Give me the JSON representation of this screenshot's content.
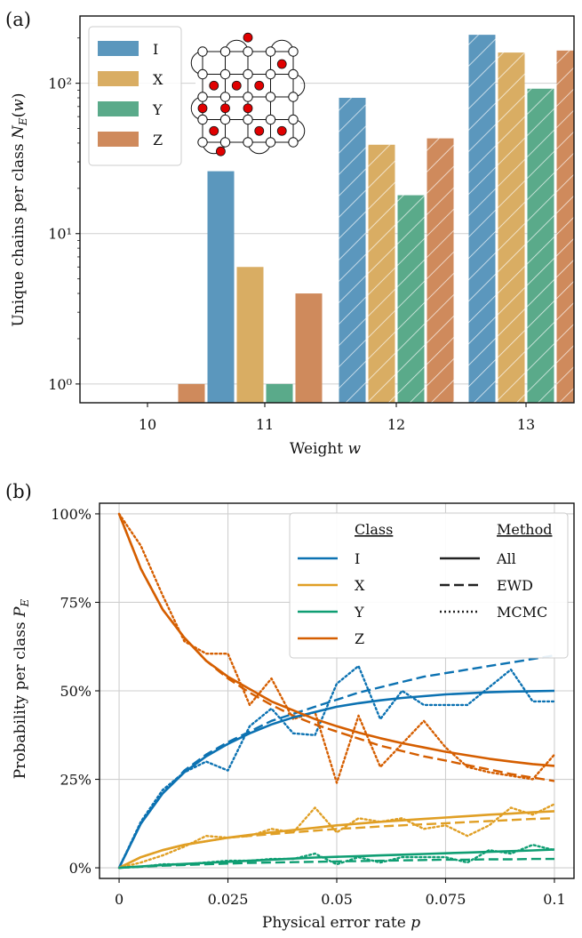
{
  "chart_data": [
    {
      "panel_label": "(a)",
      "type": "bar",
      "xlabel": "Weight w",
      "ylabel": "Unique chains per class N_E(w)",
      "yscale": "log",
      "ylim": [
        0.75,
        280
      ],
      "yticks": [
        {
          "value": 1,
          "label": "10⁰"
        },
        {
          "value": 10,
          "label": "10¹"
        },
        {
          "value": 100,
          "label": "10²"
        }
      ],
      "categories": [
        "10",
        "11",
        "12",
        "13"
      ],
      "hatched": [
        false,
        false,
        true,
        true
      ],
      "series": [
        {
          "name": "I",
          "color": "#5b97bd",
          "values": [
            null,
            26,
            80,
            210
          ]
        },
        {
          "name": "X",
          "color": "#d9ad63",
          "values": [
            null,
            6,
            39,
            160
          ]
        },
        {
          "name": "Y",
          "color": "#5aaa8a",
          "values": [
            null,
            1,
            18,
            92
          ]
        },
        {
          "name": "Z",
          "color": "#cf8a5c",
          "values": [
            1,
            4,
            43,
            165
          ]
        }
      ],
      "legend": "top-left",
      "grid": "horizontal",
      "inset": "surface code lattice with red error dots"
    },
    {
      "panel_label": "(b)",
      "type": "line",
      "xlabel": "Physical error rate p",
      "ylabel": "Probability per class P_E",
      "xlim": [
        -0.0045,
        0.1045
      ],
      "ylim": [
        -3,
        103
      ],
      "xticks": [
        {
          "value": 0,
          "label": "0"
        },
        {
          "value": 0.025,
          "label": "0.025"
        },
        {
          "value": 0.05,
          "label": "0.05"
        },
        {
          "value": 0.075,
          "label": "0.075"
        },
        {
          "value": 0.1,
          "label": "0.1"
        }
      ],
      "yticks": [
        {
          "value": 0,
          "label": "0%"
        },
        {
          "value": 25,
          "label": "25%"
        },
        {
          "value": 50,
          "label": "50%"
        },
        {
          "value": 75,
          "label": "75%"
        },
        {
          "value": 100,
          "label": "100%"
        }
      ],
      "grid": true,
      "legend": "top-right",
      "legend_class_title": "Class",
      "legend_method_title": "Method",
      "classes": [
        {
          "name": "I",
          "color": "#0c72b2"
        },
        {
          "name": "X",
          "color": "#e09f25"
        },
        {
          "name": "Y",
          "color": "#0f9e73"
        },
        {
          "name": "Z",
          "color": "#d55e00"
        }
      ],
      "methods": [
        {
          "name": "All",
          "dash": "solid"
        },
        {
          "name": "EWD",
          "dash": "dashed"
        },
        {
          "name": "MCMC",
          "dash": "dotted"
        }
      ],
      "x": [
        0,
        0.005,
        0.01,
        0.015,
        0.02,
        0.025,
        0.03,
        0.035,
        0.04,
        0.045,
        0.05,
        0.055,
        0.06,
        0.065,
        0.07,
        0.075,
        0.08,
        0.085,
        0.09,
        0.095,
        0.1
      ],
      "series": [
        {
          "class": "I",
          "method": "All",
          "values": [
            0,
            12.5,
            21,
            27,
            31.5,
            35,
            38,
            40.5,
            42.5,
            44,
            45.5,
            46.5,
            47.3,
            48,
            48.5,
            49,
            49.3,
            49.6,
            49.8,
            49.9,
            50
          ]
        },
        {
          "class": "I",
          "method": "EWD",
          "values": [
            0,
            12.5,
            21,
            27.5,
            32,
            35.5,
            38.5,
            41.5,
            43.5,
            45.5,
            47.5,
            49.5,
            51,
            52.5,
            54,
            55,
            56,
            57,
            58,
            59,
            60
          ]
        },
        {
          "class": "I",
          "method": "MCMC",
          "values": [
            0,
            13,
            22,
            27,
            30,
            27.5,
            40,
            45,
            38,
            37.5,
            52,
            57,
            42,
            50,
            46,
            46,
            46,
            51,
            56,
            47,
            47
          ]
        },
        {
          "class": "X",
          "method": "All",
          "values": [
            0,
            3,
            5,
            6.5,
            7.5,
            8.5,
            9.3,
            10,
            10.7,
            11.3,
            12,
            12.5,
            13,
            13.4,
            13.8,
            14.2,
            14.6,
            15,
            15.3,
            15.7,
            16
          ]
        },
        {
          "class": "X",
          "method": "EWD",
          "values": [
            0,
            3,
            5,
            6.5,
            7.5,
            8.5,
            9,
            9.5,
            10,
            10.5,
            11,
            11.3,
            11.7,
            12,
            12.3,
            12.6,
            12.9,
            13.2,
            13.5,
            13.8,
            14
          ]
        },
        {
          "class": "X",
          "method": "MCMC",
          "values": [
            0,
            1.5,
            3.5,
            6,
            9,
            8.5,
            9,
            11,
            10,
            17,
            10,
            14,
            13,
            14,
            11,
            12,
            9,
            12,
            17,
            15,
            18
          ]
        },
        {
          "class": "Y",
          "method": "All",
          "values": [
            0,
            0.4,
            0.8,
            1.1,
            1.4,
            1.7,
            2,
            2.3,
            2.6,
            2.9,
            3.1,
            3.3,
            3.5,
            3.7,
            3.9,
            4.1,
            4.3,
            4.5,
            4.7,
            4.9,
            5.2
          ]
        },
        {
          "class": "Y",
          "method": "EWD",
          "values": [
            0,
            0.3,
            0.6,
            0.8,
            1,
            1.2,
            1.4,
            1.5,
            1.6,
            1.7,
            1.8,
            1.9,
            2,
            2.1,
            2.2,
            2.3,
            2.3,
            2.4,
            2.4,
            2.5,
            2.5
          ]
        },
        {
          "class": "Y",
          "method": "MCMC",
          "values": [
            0,
            0.3,
            1,
            1,
            1.5,
            2,
            2,
            2.5,
            2.5,
            4,
            1,
            3,
            1.5,
            3,
            3,
            3,
            1.5,
            5,
            4,
            6.5,
            5
          ]
        },
        {
          "class": "Z",
          "method": "All",
          "values": [
            100,
            84.5,
            73,
            65,
            58.5,
            54,
            50.5,
            47,
            44.5,
            42,
            40,
            38.2,
            36.6,
            35.2,
            34,
            32.8,
            31.8,
            30.8,
            30,
            29.3,
            28.8
          ]
        },
        {
          "class": "Z",
          "method": "EWD",
          "values": [
            100,
            84.5,
            73,
            65,
            58.5,
            53.5,
            49.5,
            46,
            43,
            40.5,
            38.5,
            36.5,
            34.5,
            33,
            31.5,
            30.3,
            29,
            27.8,
            26.5,
            25.5,
            24.5
          ]
        },
        {
          "class": "Z",
          "method": "MCMC",
          "values": [
            100,
            91,
            77,
            64,
            60.5,
            60.5,
            46,
            53.5,
            42,
            44,
            24,
            43,
            28.5,
            35,
            41.5,
            34,
            28.5,
            27,
            26,
            25,
            32
          ]
        }
      ]
    }
  ]
}
